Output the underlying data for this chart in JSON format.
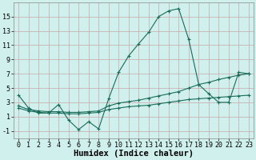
{
  "background_color": "#cff0ec",
  "grid_color": "#c8a8a8",
  "line_color": "#1a6b5a",
  "xlabel": "Humidex (Indice chaleur)",
  "xlabel_fontsize": 7.5,
  "tick_fontsize": 6,
  "xlim": [
    -0.5,
    23.5
  ],
  "ylim": [
    -2.0,
    17.0
  ],
  "yticks": [
    -1,
    1,
    3,
    5,
    7,
    9,
    11,
    13,
    15
  ],
  "xticks": [
    0,
    1,
    2,
    3,
    4,
    5,
    6,
    7,
    8,
    9,
    10,
    11,
    12,
    13,
    14,
    15,
    16,
    17,
    18,
    19,
    20,
    21,
    22,
    23
  ],
  "series1_x": [
    0,
    1,
    2,
    3,
    4,
    5,
    6,
    7,
    8,
    9,
    10,
    11,
    12,
    13,
    14,
    15,
    16,
    17,
    18,
    19,
    20,
    21,
    22,
    23
  ],
  "series1_y": [
    4.0,
    2.2,
    1.5,
    1.5,
    2.7,
    0.5,
    -0.8,
    0.3,
    -0.7,
    3.5,
    7.2,
    9.5,
    11.2,
    12.8,
    15.0,
    15.8,
    16.1,
    11.8,
    5.5,
    4.2,
    3.0,
    3.0,
    7.2,
    7.0
  ],
  "series2_x": [
    0,
    1,
    2,
    3,
    4,
    5,
    6,
    7,
    8,
    9,
    10,
    11,
    12,
    13,
    14,
    15,
    16,
    17,
    18,
    19,
    20,
    21,
    22,
    23
  ],
  "series2_y": [
    2.5,
    2.0,
    1.8,
    1.7,
    1.7,
    1.6,
    1.6,
    1.7,
    1.8,
    2.5,
    2.9,
    3.1,
    3.3,
    3.6,
    3.9,
    4.2,
    4.5,
    5.0,
    5.5,
    5.8,
    6.2,
    6.5,
    6.8,
    7.0
  ],
  "series3_x": [
    0,
    1,
    2,
    3,
    4,
    5,
    6,
    7,
    8,
    9,
    10,
    11,
    12,
    13,
    14,
    15,
    16,
    17,
    18,
    19,
    20,
    21,
    22,
    23
  ],
  "series3_y": [
    2.2,
    1.8,
    1.6,
    1.5,
    1.5,
    1.4,
    1.4,
    1.5,
    1.6,
    2.0,
    2.2,
    2.4,
    2.5,
    2.6,
    2.8,
    3.0,
    3.2,
    3.4,
    3.5,
    3.6,
    3.7,
    3.8,
    3.9,
    4.0
  ],
  "figsize": [
    3.2,
    2.0
  ],
  "dpi": 100
}
